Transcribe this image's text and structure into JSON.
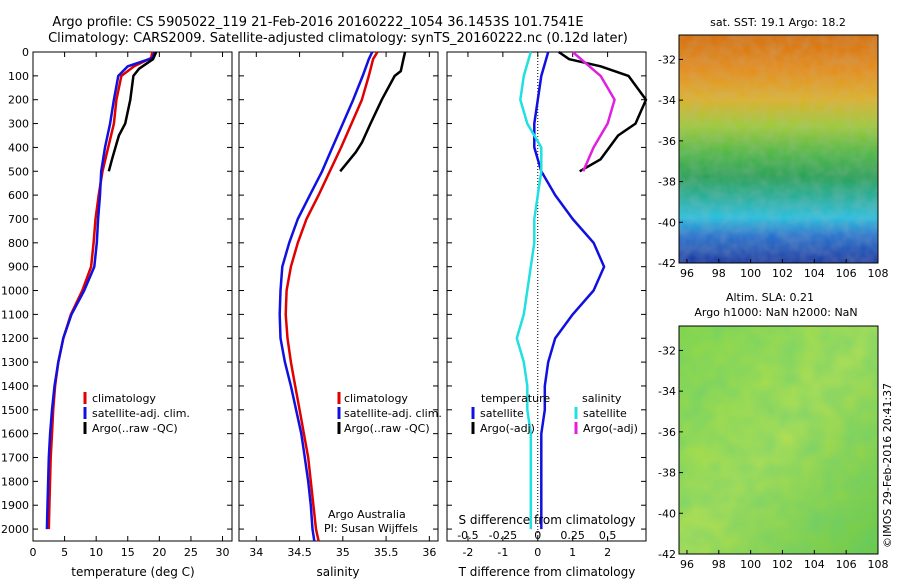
{
  "header": {
    "title_line1": "Argo profile: CS 5905022_119 21-Feb-2016 20160222_1054 36.1453S 101.7541E",
    "title_line2": "Climatology: CARS2009. Satellite-adjusted climatology: synTS_20160222.nc (0.12d later)"
  },
  "colors": {
    "climatology": "#e00000",
    "satellite": "#1010e0",
    "argo": "#000000",
    "s_satellite": "#20e0e0",
    "s_argo": "#e020e0"
  },
  "depth_axis": {
    "range": [
      0,
      2050
    ],
    "ticks": [
      0,
      100,
      200,
      300,
      400,
      500,
      600,
      700,
      800,
      900,
      1000,
      1100,
      1200,
      1300,
      1400,
      1500,
      1600,
      1700,
      1800,
      1900,
      2000
    ],
    "invert": true
  },
  "panels": {
    "temperature": {
      "xlabel": "temperature (deg C)",
      "xrange": [
        0,
        31.5
      ],
      "xticks": [
        0,
        5,
        10,
        15,
        20,
        25,
        30
      ],
      "legend": [
        "climatology",
        "satellite-adj. clim.",
        "Argo(..raw -QC)"
      ]
    },
    "salinity": {
      "xlabel": "salinity",
      "xrange": [
        33.8,
        36.1
      ],
      "xticks": [
        34,
        34.5,
        35,
        35.5,
        36
      ],
      "legend": [
        "climatology",
        "satellite-adj. clim.",
        "Argo(..raw -QC)"
      ],
      "note_line1": "Argo Australia",
      "note_line2": "PI: Susan Wijffels"
    },
    "difference": {
      "xlabel": "T difference from climatology",
      "xrange": [
        -2.6,
        3.1
      ],
      "xticks": [
        -2,
        -1,
        0,
        1,
        2
      ],
      "s_label": "S difference from climatology",
      "s_ticks": [
        "-0.5",
        "-0.25",
        "0",
        "0.25",
        "0.5"
      ],
      "s_tick_positions": [
        -2,
        -1,
        0,
        1,
        2
      ],
      "legend_temp_title": "temperature",
      "legend_sal_title": "salinity",
      "legend_temp": [
        "satellite",
        "Argo(-adj)"
      ],
      "legend_sal": [
        "satellite",
        "Argo(-adj)"
      ]
    },
    "map_sst": {
      "title": "sat. SST: 19.1  Argo: 18.2",
      "xticks": [
        96,
        98,
        100,
        102,
        104,
        106,
        108
      ],
      "yticks": [
        -32,
        -34,
        -36,
        -38,
        -40,
        -42
      ]
    },
    "map_sla": {
      "title_line1": "Altim. SLA: 0.21",
      "title_line2": "Argo h1000: NaN h2000: NaN",
      "xticks": [
        96,
        98,
        100,
        102,
        104,
        106,
        108
      ],
      "yticks": [
        -32,
        -34,
        -36,
        -38,
        -40,
        -42
      ]
    }
  },
  "footer_stamp": "©IMOS 29-Feb-2016 20:41:37",
  "chart_data": [
    {
      "type": "line",
      "title": "Argo profile: CS 5905022_119 21-Feb-2016 20160222_1054 36.1453S 101.7541E",
      "xlabel": "temperature (deg C)",
      "ylabel": "",
      "xlim": [
        0,
        31.5
      ],
      "ylim": [
        2050,
        0
      ],
      "series": [
        {
          "name": "climatology",
          "x": [
            18.9,
            18.7,
            16.0,
            14.0,
            13.2,
            12.8,
            11.9,
            11.0,
            10.4,
            9.9,
            9.6,
            9.2,
            7.8,
            6.0,
            4.8,
            4.0,
            3.5,
            3.2,
            3.0,
            2.8,
            2.6,
            2.5
          ],
          "y": [
            0,
            25,
            60,
            100,
            200,
            300,
            400,
            500,
            600,
            700,
            800,
            900,
            1000,
            1100,
            1200,
            1300,
            1400,
            1500,
            1600,
            1700,
            1900,
            2000
          ]
        },
        {
          "name": "satellite-adj. clim.",
          "x": [
            19.3,
            18.9,
            15.0,
            13.5,
            12.8,
            12.2,
            11.4,
            10.8,
            10.6,
            10.3,
            10.1,
            9.7,
            8.1,
            6.1,
            4.8,
            4.0,
            3.4,
            3.0,
            2.7,
            2.5,
            2.3,
            2.2
          ],
          "y": [
            0,
            25,
            60,
            100,
            200,
            300,
            400,
            500,
            600,
            700,
            800,
            900,
            1000,
            1100,
            1200,
            1300,
            1400,
            1500,
            1600,
            1700,
            1900,
            2000
          ]
        },
        {
          "name": "Argo(..raw -QC)",
          "x": [
            19.5,
            19.0,
            16.8,
            15.9,
            15.4,
            14.6,
            13.6,
            12.5,
            12.0
          ],
          "y": [
            0,
            30,
            70,
            100,
            200,
            300,
            350,
            450,
            500
          ]
        }
      ]
    },
    {
      "type": "line",
      "xlabel": "salinity",
      "xlim": [
        33.8,
        36.1
      ],
      "ylim": [
        2050,
        0
      ],
      "series": [
        {
          "name": "climatology",
          "x": [
            35.4,
            35.35,
            35.3,
            35.22,
            35.1,
            34.98,
            34.85,
            34.72,
            34.58,
            34.48,
            34.4,
            34.35,
            34.34,
            34.36,
            34.4,
            34.45,
            34.5,
            34.55,
            34.6,
            34.63,
            34.66,
            34.69,
            34.72
          ],
          "y": [
            0,
            30,
            100,
            200,
            300,
            400,
            500,
            600,
            700,
            800,
            900,
            1000,
            1100,
            1200,
            1300,
            1400,
            1500,
            1600,
            1700,
            1800,
            1900,
            2000,
            2050
          ]
        },
        {
          "name": "satellite-adj. clim.",
          "x": [
            35.34,
            35.3,
            35.23,
            35.12,
            35.0,
            34.88,
            34.76,
            34.62,
            34.48,
            34.38,
            34.3,
            34.28,
            34.27,
            34.28,
            34.33,
            34.4,
            34.46,
            34.52,
            34.56,
            34.6,
            34.63,
            34.65,
            34.67
          ],
          "y": [
            0,
            30,
            100,
            200,
            300,
            400,
            500,
            600,
            700,
            800,
            900,
            1000,
            1100,
            1200,
            1300,
            1400,
            1500,
            1600,
            1700,
            1800,
            1900,
            2000,
            2050
          ]
        },
        {
          "name": "Argo(..raw -QC)",
          "x": [
            35.72,
            35.7,
            35.67,
            35.6,
            35.45,
            35.32,
            35.22,
            35.15,
            34.97
          ],
          "y": [
            0,
            30,
            80,
            100,
            200,
            300,
            380,
            420,
            500
          ]
        }
      ]
    },
    {
      "type": "line",
      "xlabel": "T difference from climatology",
      "xlim": [
        -2.6,
        3.1
      ],
      "ylim": [
        2050,
        0
      ],
      "series": [
        {
          "name": "temperature satellite",
          "x": [
            0.3,
            0.2,
            0.1,
            0.0,
            -0.1,
            -0.1,
            0.1,
            0.5,
            1.0,
            1.6,
            1.9,
            1.6,
            1.0,
            0.5,
            0.3,
            0.2,
            0.2,
            0.1,
            0.1,
            0.1,
            0.1
          ],
          "y": [
            0,
            50,
            100,
            200,
            300,
            400,
            500,
            600,
            700,
            800,
            900,
            1000,
            1100,
            1200,
            1300,
            1400,
            1500,
            1600,
            1700,
            1900,
            2000
          ]
        },
        {
          "name": "temperature Argo(-adj)",
          "x": [
            0.6,
            0.9,
            1.8,
            2.6,
            3.1,
            2.8,
            2.3,
            1.8,
            1.2
          ],
          "y": [
            0,
            30,
            60,
            100,
            200,
            300,
            350,
            450,
            500
          ]
        },
        {
          "name": "salinity satellite",
          "x": [
            -0.2,
            -0.3,
            -0.4,
            -0.5,
            -0.3,
            0.1,
            0.1,
            0.0,
            -0.1,
            -0.1,
            -0.2,
            -0.3,
            -0.4,
            -0.6,
            -0.4,
            -0.3,
            -0.3,
            -0.2,
            -0.2,
            -0.2,
            -0.2
          ],
          "y": [
            0,
            50,
            100,
            200,
            300,
            400,
            500,
            600,
            700,
            800,
            900,
            1000,
            1100,
            1200,
            1300,
            1400,
            1500,
            1600,
            1700,
            1900,
            2000
          ]
        },
        {
          "name": "salinity Argo(-adj)",
          "x": [
            1.0,
            1.4,
            1.8,
            2.0,
            2.2,
            2.0,
            1.6,
            1.3
          ],
          "y": [
            0,
            50,
            100,
            150,
            200,
            300,
            400,
            500
          ]
        }
      ]
    }
  ]
}
